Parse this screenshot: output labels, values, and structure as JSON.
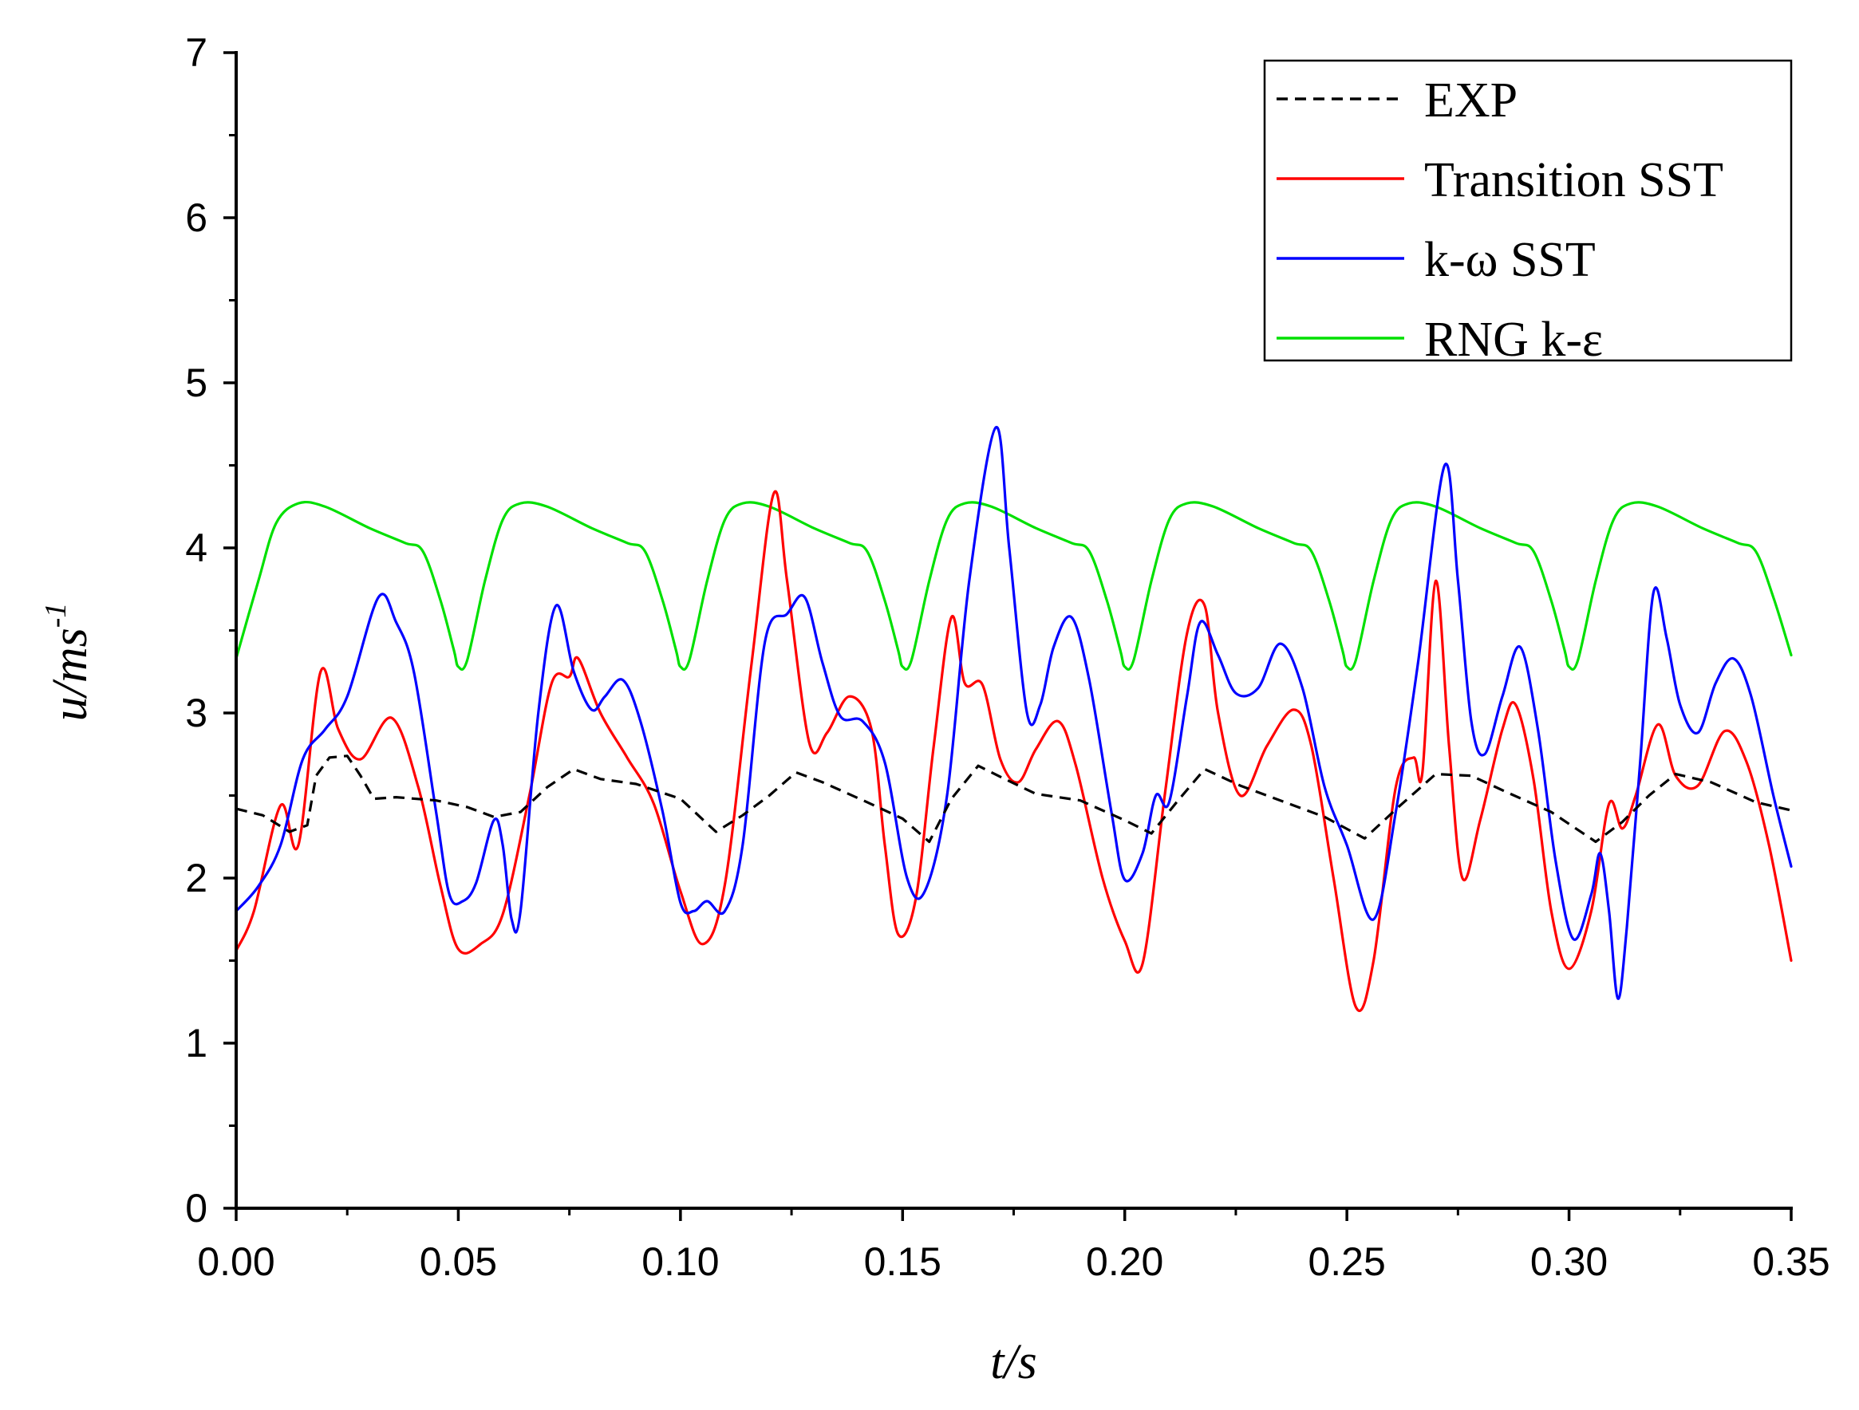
{
  "chart_data": {
    "type": "line",
    "title": "",
    "xlabel": "t/s",
    "ylabel": "u/ms",
    "ylabel_sup": "-1",
    "xlim": [
      0,
      0.35
    ],
    "ylim": [
      0,
      7
    ],
    "xticks": [
      "0.00",
      "0.05",
      "0.10",
      "0.15",
      "0.20",
      "0.25",
      "0.30",
      "0.35"
    ],
    "yticks": [
      "0",
      "1",
      "2",
      "3",
      "4",
      "5",
      "6",
      "7"
    ],
    "grid": false,
    "legend_position": "top-right",
    "series": [
      {
        "name": "EXP",
        "color": "#000000",
        "dashed": true,
        "points": [
          [
            0,
            2.42
          ],
          [
            0.006,
            2.38
          ],
          [
            0.012,
            2.28
          ],
          [
            0.016,
            2.32
          ],
          [
            0.018,
            2.62
          ],
          [
            0.021,
            2.73
          ],
          [
            0.025,
            2.74
          ],
          [
            0.028,
            2.62
          ],
          [
            0.031,
            2.48
          ],
          [
            0.036,
            2.49
          ],
          [
            0.045,
            2.47
          ],
          [
            0.052,
            2.43
          ],
          [
            0.058,
            2.37
          ],
          [
            0.064,
            2.4
          ],
          [
            0.07,
            2.55
          ],
          [
            0.076,
            2.66
          ],
          [
            0.082,
            2.6
          ],
          [
            0.09,
            2.57
          ],
          [
            0.1,
            2.48
          ],
          [
            0.108,
            2.28
          ],
          [
            0.114,
            2.38
          ],
          [
            0.12,
            2.5
          ],
          [
            0.126,
            2.64
          ],
          [
            0.132,
            2.58
          ],
          [
            0.142,
            2.46
          ],
          [
            0.15,
            2.36
          ],
          [
            0.156,
            2.22
          ],
          [
            0.161,
            2.48
          ],
          [
            0.167,
            2.68
          ],
          [
            0.173,
            2.6
          ],
          [
            0.18,
            2.51
          ],
          [
            0.19,
            2.47
          ],
          [
            0.2,
            2.35
          ],
          [
            0.206,
            2.27
          ],
          [
            0.212,
            2.47
          ],
          [
            0.218,
            2.66
          ],
          [
            0.226,
            2.56
          ],
          [
            0.236,
            2.46
          ],
          [
            0.245,
            2.37
          ],
          [
            0.254,
            2.24
          ],
          [
            0.262,
            2.44
          ],
          [
            0.27,
            2.63
          ],
          [
            0.278,
            2.62
          ],
          [
            0.286,
            2.52
          ],
          [
            0.296,
            2.4
          ],
          [
            0.306,
            2.22
          ],
          [
            0.312,
            2.34
          ],
          [
            0.318,
            2.5
          ],
          [
            0.324,
            2.63
          ],
          [
            0.332,
            2.58
          ],
          [
            0.342,
            2.46
          ],
          [
            0.35,
            2.41
          ]
        ]
      },
      {
        "name": "Transition SST",
        "color": "#ff0000",
        "dashed": false,
        "points": [
          [
            0,
            1.56
          ],
          [
            0.004,
            1.8
          ],
          [
            0.01,
            2.44
          ],
          [
            0.014,
            2.2
          ],
          [
            0.019,
            3.25
          ],
          [
            0.023,
            2.9
          ],
          [
            0.028,
            2.72
          ],
          [
            0.035,
            2.97
          ],
          [
            0.041,
            2.55
          ],
          [
            0.046,
            1.95
          ],
          [
            0.05,
            1.57
          ],
          [
            0.055,
            1.6
          ],
          [
            0.06,
            1.78
          ],
          [
            0.066,
            2.5
          ],
          [
            0.071,
            3.18
          ],
          [
            0.075,
            3.22
          ],
          [
            0.077,
            3.33
          ],
          [
            0.082,
            3.0
          ],
          [
            0.088,
            2.73
          ],
          [
            0.094,
            2.45
          ],
          [
            0.1,
            1.92
          ],
          [
            0.105,
            1.6
          ],
          [
            0.11,
            1.96
          ],
          [
            0.116,
            3.3
          ],
          [
            0.121,
            4.33
          ],
          [
            0.124,
            3.8
          ],
          [
            0.129,
            2.82
          ],
          [
            0.133,
            2.88
          ],
          [
            0.138,
            3.1
          ],
          [
            0.143,
            2.9
          ],
          [
            0.146,
            2.2
          ],
          [
            0.149,
            1.66
          ],
          [
            0.153,
            1.88
          ],
          [
            0.157,
            2.8
          ],
          [
            0.161,
            3.58
          ],
          [
            0.164,
            3.18
          ],
          [
            0.168,
            3.17
          ],
          [
            0.172,
            2.72
          ],
          [
            0.176,
            2.58
          ],
          [
            0.18,
            2.78
          ],
          [
            0.185,
            2.95
          ],
          [
            0.189,
            2.68
          ],
          [
            0.195,
            2.0
          ],
          [
            0.2,
            1.62
          ],
          [
            0.204,
            1.48
          ],
          [
            0.209,
            2.5
          ],
          [
            0.214,
            3.48
          ],
          [
            0.218,
            3.65
          ],
          [
            0.221,
            3.0
          ],
          [
            0.226,
            2.5
          ],
          [
            0.232,
            2.8
          ],
          [
            0.238,
            3.02
          ],
          [
            0.242,
            2.8
          ],
          [
            0.247,
            2.0
          ],
          [
            0.252,
            1.22
          ],
          [
            0.256,
            1.5
          ],
          [
            0.261,
            2.55
          ],
          [
            0.265,
            2.73
          ],
          [
            0.267,
            2.64
          ],
          [
            0.27,
            3.8
          ],
          [
            0.273,
            2.8
          ],
          [
            0.276,
            2.0
          ],
          [
            0.28,
            2.35
          ],
          [
            0.285,
            2.9
          ],
          [
            0.288,
            3.05
          ],
          [
            0.292,
            2.6
          ],
          [
            0.296,
            1.8
          ],
          [
            0.3,
            1.45
          ],
          [
            0.305,
            1.8
          ],
          [
            0.309,
            2.45
          ],
          [
            0.312,
            2.3
          ],
          [
            0.315,
            2.5
          ],
          [
            0.32,
            2.93
          ],
          [
            0.324,
            2.62
          ],
          [
            0.329,
            2.56
          ],
          [
            0.335,
            2.89
          ],
          [
            0.34,
            2.7
          ],
          [
            0.345,
            2.2
          ],
          [
            0.35,
            1.5
          ]
        ]
      },
      {
        "name": "k-ω SST",
        "color": "#0000ff",
        "dashed": false,
        "points": [
          [
            0,
            1.8
          ],
          [
            0.005,
            1.95
          ],
          [
            0.01,
            2.2
          ],
          [
            0.015,
            2.72
          ],
          [
            0.02,
            2.9
          ],
          [
            0.025,
            3.1
          ],
          [
            0.032,
            3.7
          ],
          [
            0.036,
            3.55
          ],
          [
            0.04,
            3.25
          ],
          [
            0.045,
            2.4
          ],
          [
            0.048,
            1.9
          ],
          [
            0.051,
            1.86
          ],
          [
            0.054,
            1.97
          ],
          [
            0.058,
            2.35
          ],
          [
            0.06,
            2.2
          ],
          [
            0.062,
            1.75
          ],
          [
            0.064,
            1.8
          ],
          [
            0.068,
            3.0
          ],
          [
            0.072,
            3.65
          ],
          [
            0.076,
            3.25
          ],
          [
            0.08,
            3.02
          ],
          [
            0.083,
            3.1
          ],
          [
            0.087,
            3.2
          ],
          [
            0.091,
            2.95
          ],
          [
            0.096,
            2.4
          ],
          [
            0.1,
            1.85
          ],
          [
            0.103,
            1.8
          ],
          [
            0.106,
            1.86
          ],
          [
            0.11,
            1.8
          ],
          [
            0.114,
            2.2
          ],
          [
            0.119,
            3.43
          ],
          [
            0.124,
            3.6
          ],
          [
            0.128,
            3.7
          ],
          [
            0.132,
            3.3
          ],
          [
            0.136,
            2.98
          ],
          [
            0.141,
            2.95
          ],
          [
            0.146,
            2.7
          ],
          [
            0.151,
            2.0
          ],
          [
            0.155,
            1.92
          ],
          [
            0.16,
            2.5
          ],
          [
            0.165,
            3.8
          ],
          [
            0.171,
            4.73
          ],
          [
            0.174,
            4.0
          ],
          [
            0.178,
            3.0
          ],
          [
            0.181,
            3.05
          ],
          [
            0.184,
            3.4
          ],
          [
            0.188,
            3.58
          ],
          [
            0.192,
            3.2
          ],
          [
            0.197,
            2.4
          ],
          [
            0.2,
            1.99
          ],
          [
            0.204,
            2.15
          ],
          [
            0.207,
            2.5
          ],
          [
            0.21,
            2.46
          ],
          [
            0.214,
            3.1
          ],
          [
            0.217,
            3.55
          ],
          [
            0.221,
            3.35
          ],
          [
            0.225,
            3.12
          ],
          [
            0.23,
            3.15
          ],
          [
            0.235,
            3.42
          ],
          [
            0.24,
            3.15
          ],
          [
            0.245,
            2.55
          ],
          [
            0.25,
            2.2
          ],
          [
            0.256,
            1.75
          ],
          [
            0.261,
            2.4
          ],
          [
            0.266,
            3.3
          ],
          [
            0.272,
            4.5
          ],
          [
            0.275,
            3.8
          ],
          [
            0.278,
            2.95
          ],
          [
            0.281,
            2.75
          ],
          [
            0.285,
            3.1
          ],
          [
            0.289,
            3.4
          ],
          [
            0.293,
            2.9
          ],
          [
            0.297,
            2.1
          ],
          [
            0.301,
            1.63
          ],
          [
            0.305,
            1.9
          ],
          [
            0.307,
            2.15
          ],
          [
            0.309,
            1.8
          ],
          [
            0.311,
            1.27
          ],
          [
            0.313,
            1.7
          ],
          [
            0.316,
            2.7
          ],
          [
            0.319,
            3.73
          ],
          [
            0.322,
            3.45
          ],
          [
            0.325,
            3.05
          ],
          [
            0.329,
            2.88
          ],
          [
            0.333,
            3.18
          ],
          [
            0.337,
            3.33
          ],
          [
            0.341,
            3.1
          ],
          [
            0.346,
            2.5
          ],
          [
            0.35,
            2.07
          ]
        ]
      },
      {
        "name": "RNG k-ε",
        "color": "#00e000",
        "dashed": false,
        "points": [
          [
            0,
            3.33
          ],
          [
            0.005,
            3.8
          ],
          [
            0.009,
            4.15
          ],
          [
            0.014,
            4.27
          ],
          [
            0.02,
            4.25
          ],
          [
            0.03,
            4.12
          ],
          [
            0.038,
            4.03
          ],
          [
            0.042,
            3.98
          ],
          [
            0.046,
            3.68
          ],
          [
            0.049,
            3.38
          ],
          [
            0.05,
            3.28
          ],
          [
            0.052,
            3.32
          ],
          [
            0.056,
            3.8
          ],
          [
            0.06,
            4.17
          ],
          [
            0.064,
            4.27
          ],
          [
            0.07,
            4.25
          ],
          [
            0.08,
            4.12
          ],
          [
            0.088,
            4.03
          ],
          [
            0.092,
            3.98
          ],
          [
            0.096,
            3.68
          ],
          [
            0.099,
            3.38
          ],
          [
            0.1,
            3.28
          ],
          [
            0.102,
            3.32
          ],
          [
            0.106,
            3.8
          ],
          [
            0.11,
            4.17
          ],
          [
            0.114,
            4.27
          ],
          [
            0.12,
            4.25
          ],
          [
            0.13,
            4.12
          ],
          [
            0.138,
            4.03
          ],
          [
            0.142,
            3.98
          ],
          [
            0.146,
            3.68
          ],
          [
            0.149,
            3.38
          ],
          [
            0.15,
            3.28
          ],
          [
            0.152,
            3.32
          ],
          [
            0.156,
            3.8
          ],
          [
            0.16,
            4.17
          ],
          [
            0.164,
            4.27
          ],
          [
            0.17,
            4.25
          ],
          [
            0.18,
            4.12
          ],
          [
            0.188,
            4.03
          ],
          [
            0.192,
            3.98
          ],
          [
            0.196,
            3.68
          ],
          [
            0.199,
            3.38
          ],
          [
            0.2,
            3.28
          ],
          [
            0.202,
            3.32
          ],
          [
            0.206,
            3.8
          ],
          [
            0.21,
            4.17
          ],
          [
            0.214,
            4.27
          ],
          [
            0.22,
            4.25
          ],
          [
            0.23,
            4.12
          ],
          [
            0.238,
            4.03
          ],
          [
            0.242,
            3.98
          ],
          [
            0.246,
            3.68
          ],
          [
            0.249,
            3.38
          ],
          [
            0.25,
            3.28
          ],
          [
            0.252,
            3.32
          ],
          [
            0.256,
            3.8
          ],
          [
            0.26,
            4.17
          ],
          [
            0.264,
            4.27
          ],
          [
            0.27,
            4.25
          ],
          [
            0.28,
            4.12
          ],
          [
            0.288,
            4.03
          ],
          [
            0.292,
            3.98
          ],
          [
            0.296,
            3.68
          ],
          [
            0.299,
            3.38
          ],
          [
            0.3,
            3.28
          ],
          [
            0.302,
            3.32
          ],
          [
            0.306,
            3.8
          ],
          [
            0.31,
            4.17
          ],
          [
            0.314,
            4.27
          ],
          [
            0.32,
            4.25
          ],
          [
            0.33,
            4.12
          ],
          [
            0.338,
            4.03
          ],
          [
            0.342,
            3.98
          ],
          [
            0.346,
            3.7
          ],
          [
            0.35,
            3.35
          ]
        ]
      }
    ]
  }
}
